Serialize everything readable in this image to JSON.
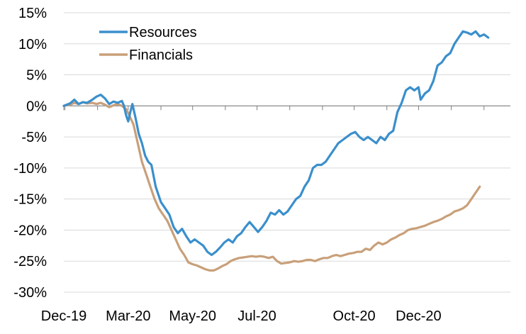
{
  "chart_data": {
    "type": "line",
    "title": "",
    "xlabel": "",
    "ylabel": "",
    "ylim": [
      -30,
      15
    ],
    "y_ticks": [
      "15%",
      "10%",
      "5%",
      "0%",
      "-5%",
      "-10%",
      "-15%",
      "-20%",
      "-25%",
      "-30%"
    ],
    "y_tick_values": [
      15,
      10,
      5,
      0,
      -5,
      -10,
      -15,
      -20,
      -25,
      -30
    ],
    "x_tick_labels": [
      "Dec-19",
      "Mar-20",
      "May-20",
      "Jul-20",
      "Oct-20",
      "Dec-20"
    ],
    "x_tick_dates": [
      "2019-12-31",
      "2020-03-01",
      "2020-05-01",
      "2020-07-01",
      "2020-10-01",
      "2020-12-01"
    ],
    "xlim": [
      "2019-12-31",
      "2021-02-26"
    ],
    "grid": "horizontal",
    "legend_position": "top-left",
    "series": [
      {
        "name": "Resources",
        "color": "#3a8fcc",
        "points": [
          [
            "2019-12-31",
            0.0
          ],
          [
            "2020-01-06",
            0.4
          ],
          [
            "2020-01-10",
            1.0
          ],
          [
            "2020-01-14",
            0.3
          ],
          [
            "2020-01-18",
            0.6
          ],
          [
            "2020-01-22",
            0.5
          ],
          [
            "2020-01-27",
            1.0
          ],
          [
            "2020-01-31",
            1.5
          ],
          [
            "2020-02-04",
            1.8
          ],
          [
            "2020-02-08",
            1.2
          ],
          [
            "2020-02-12",
            0.3
          ],
          [
            "2020-02-16",
            0.7
          ],
          [
            "2020-02-20",
            0.5
          ],
          [
            "2020-02-24",
            0.8
          ],
          [
            "2020-02-26",
            0.0
          ],
          [
            "2020-02-28",
            -1.5
          ],
          [
            "2020-03-01",
            -2.5
          ],
          [
            "2020-03-03",
            -1.0
          ],
          [
            "2020-03-05",
            0.3
          ],
          [
            "2020-03-08",
            -2.0
          ],
          [
            "2020-03-11",
            -4.5
          ],
          [
            "2020-03-14",
            -6.0
          ],
          [
            "2020-03-17",
            -8.0
          ],
          [
            "2020-03-20",
            -9.0
          ],
          [
            "2020-03-23",
            -9.5
          ],
          [
            "2020-03-27",
            -13.0
          ],
          [
            "2020-04-01",
            -15.5
          ],
          [
            "2020-04-05",
            -16.5
          ],
          [
            "2020-04-09",
            -17.5
          ],
          [
            "2020-04-13",
            -19.5
          ],
          [
            "2020-04-17",
            -20.5
          ],
          [
            "2020-04-21",
            -19.8
          ],
          [
            "2020-04-25",
            -21.0
          ],
          [
            "2020-04-29",
            -22.0
          ],
          [
            "2020-05-03",
            -21.5
          ],
          [
            "2020-05-07",
            -22.0
          ],
          [
            "2020-05-11",
            -22.5
          ],
          [
            "2020-05-15",
            -23.5
          ],
          [
            "2020-05-19",
            -24.0
          ],
          [
            "2020-05-23",
            -23.5
          ],
          [
            "2020-05-27",
            -22.8
          ],
          [
            "2020-05-31",
            -22.0
          ],
          [
            "2020-06-04",
            -21.5
          ],
          [
            "2020-06-08",
            -22.0
          ],
          [
            "2020-06-12",
            -21.0
          ],
          [
            "2020-06-16",
            -20.5
          ],
          [
            "2020-06-20",
            -19.5
          ],
          [
            "2020-06-24",
            -18.7
          ],
          [
            "2020-06-28",
            -19.5
          ],
          [
            "2020-07-02",
            -20.3
          ],
          [
            "2020-07-06",
            -19.5
          ],
          [
            "2020-07-10",
            -18.5
          ],
          [
            "2020-07-14",
            -17.2
          ],
          [
            "2020-07-18",
            -17.5
          ],
          [
            "2020-07-22",
            -16.8
          ],
          [
            "2020-07-26",
            -17.5
          ],
          [
            "2020-07-30",
            -17.0
          ],
          [
            "2020-08-03",
            -16.0
          ],
          [
            "2020-08-07",
            -15.0
          ],
          [
            "2020-08-11",
            -14.5
          ],
          [
            "2020-08-15",
            -13.0
          ],
          [
            "2020-08-19",
            -12.0
          ],
          [
            "2020-08-23",
            -10.0
          ],
          [
            "2020-08-27",
            -9.5
          ],
          [
            "2020-08-31",
            -9.5
          ],
          [
            "2020-09-04",
            -9.0
          ],
          [
            "2020-09-08",
            -8.0
          ],
          [
            "2020-09-12",
            -7.0
          ],
          [
            "2020-09-16",
            -6.0
          ],
          [
            "2020-09-20",
            -5.5
          ],
          [
            "2020-09-24",
            -5.0
          ],
          [
            "2020-09-28",
            -4.5
          ],
          [
            "2020-10-02",
            -4.2
          ],
          [
            "2020-10-06",
            -5.0
          ],
          [
            "2020-10-10",
            -5.5
          ],
          [
            "2020-10-14",
            -5.0
          ],
          [
            "2020-10-18",
            -5.5
          ],
          [
            "2020-10-22",
            -6.0
          ],
          [
            "2020-10-26",
            -5.0
          ],
          [
            "2020-10-30",
            -5.5
          ],
          [
            "2020-11-03",
            -4.5
          ],
          [
            "2020-11-07",
            -4.0
          ],
          [
            "2020-11-11",
            -1.0
          ],
          [
            "2020-11-15",
            0.5
          ],
          [
            "2020-11-19",
            2.5
          ],
          [
            "2020-11-23",
            3.0
          ],
          [
            "2020-11-27",
            2.5
          ],
          [
            "2020-12-01",
            3.0
          ],
          [
            "2020-12-03",
            1.0
          ],
          [
            "2020-12-07",
            2.0
          ],
          [
            "2020-12-11",
            2.5
          ],
          [
            "2020-12-15",
            4.0
          ],
          [
            "2020-12-19",
            6.5
          ],
          [
            "2020-12-23",
            7.0
          ],
          [
            "2020-12-27",
            8.0
          ],
          [
            "2020-12-31",
            8.5
          ],
          [
            "2021-01-04",
            10.0
          ],
          [
            "2021-01-08",
            11.0
          ],
          [
            "2021-01-12",
            12.0
          ],
          [
            "2021-01-16",
            11.8
          ],
          [
            "2021-01-20",
            11.5
          ],
          [
            "2021-01-24",
            12.0
          ],
          [
            "2021-01-28",
            11.2
          ],
          [
            "2021-02-01",
            11.5
          ],
          [
            "2021-02-05",
            11.0
          ]
        ]
      },
      {
        "name": "Financials",
        "color": "#c8a07a",
        "points": [
          [
            "2019-12-31",
            0.0
          ],
          [
            "2020-01-06",
            0.2
          ],
          [
            "2020-01-10",
            0.5
          ],
          [
            "2020-01-14",
            0.3
          ],
          [
            "2020-01-18",
            0.6
          ],
          [
            "2020-01-22",
            0.4
          ],
          [
            "2020-01-27",
            0.5
          ],
          [
            "2020-01-31",
            0.3
          ],
          [
            "2020-02-04",
            0.5
          ],
          [
            "2020-02-08",
            0.2
          ],
          [
            "2020-02-12",
            -0.2
          ],
          [
            "2020-02-16",
            0.1
          ],
          [
            "2020-02-20",
            0.3
          ],
          [
            "2020-02-24",
            0.0
          ],
          [
            "2020-02-28",
            -0.5
          ],
          [
            "2020-03-02",
            -1.5
          ],
          [
            "2020-03-06",
            -3.0
          ],
          [
            "2020-03-10",
            -6.0
          ],
          [
            "2020-03-14",
            -9.0
          ],
          [
            "2020-03-18",
            -11.0
          ],
          [
            "2020-03-22",
            -13.0
          ],
          [
            "2020-03-26",
            -15.0
          ],
          [
            "2020-03-30",
            -16.5
          ],
          [
            "2020-04-03",
            -17.5
          ],
          [
            "2020-04-07",
            -18.5
          ],
          [
            "2020-04-11",
            -20.0
          ],
          [
            "2020-04-15",
            -21.5
          ],
          [
            "2020-04-19",
            -23.0
          ],
          [
            "2020-04-23",
            -24.0
          ],
          [
            "2020-04-27",
            -25.2
          ],
          [
            "2020-05-01",
            -25.5
          ],
          [
            "2020-05-05",
            -25.7
          ],
          [
            "2020-05-09",
            -26.0
          ],
          [
            "2020-05-13",
            -26.3
          ],
          [
            "2020-05-17",
            -26.5
          ],
          [
            "2020-05-21",
            -26.5
          ],
          [
            "2020-05-25",
            -26.2
          ],
          [
            "2020-05-29",
            -25.8
          ],
          [
            "2020-06-02",
            -25.5
          ],
          [
            "2020-06-06",
            -25.0
          ],
          [
            "2020-06-10",
            -24.7
          ],
          [
            "2020-06-14",
            -24.5
          ],
          [
            "2020-06-18",
            -24.4
          ],
          [
            "2020-06-22",
            -24.3
          ],
          [
            "2020-06-26",
            -24.2
          ],
          [
            "2020-06-30",
            -24.3
          ],
          [
            "2020-07-04",
            -24.2
          ],
          [
            "2020-07-08",
            -24.3
          ],
          [
            "2020-07-12",
            -24.5
          ],
          [
            "2020-07-16",
            -24.3
          ],
          [
            "2020-07-20",
            -25.0
          ],
          [
            "2020-07-24",
            -25.4
          ],
          [
            "2020-07-28",
            -25.3
          ],
          [
            "2020-08-01",
            -25.2
          ],
          [
            "2020-08-05",
            -25.0
          ],
          [
            "2020-08-09",
            -25.1
          ],
          [
            "2020-08-13",
            -25.0
          ],
          [
            "2020-08-17",
            -24.8
          ],
          [
            "2020-08-21",
            -24.8
          ],
          [
            "2020-08-25",
            -25.0
          ],
          [
            "2020-08-29",
            -24.7
          ],
          [
            "2020-09-02",
            -24.5
          ],
          [
            "2020-09-06",
            -24.5
          ],
          [
            "2020-09-10",
            -24.2
          ],
          [
            "2020-09-14",
            -24.0
          ],
          [
            "2020-09-18",
            -24.2
          ],
          [
            "2020-09-22",
            -24.0
          ],
          [
            "2020-09-26",
            -23.8
          ],
          [
            "2020-09-30",
            -23.7
          ],
          [
            "2020-10-04",
            -23.5
          ],
          [
            "2020-10-08",
            -23.5
          ],
          [
            "2020-10-12",
            -23.0
          ],
          [
            "2020-10-16",
            -23.2
          ],
          [
            "2020-10-20",
            -22.5
          ],
          [
            "2020-10-24",
            -22.0
          ],
          [
            "2020-10-28",
            -22.3
          ],
          [
            "2020-11-01",
            -22.0
          ],
          [
            "2020-11-05",
            -21.5
          ],
          [
            "2020-11-09",
            -21.2
          ],
          [
            "2020-11-13",
            -20.8
          ],
          [
            "2020-11-17",
            -20.5
          ],
          [
            "2020-11-21",
            -20.0
          ],
          [
            "2020-11-25",
            -19.8
          ],
          [
            "2020-11-29",
            -19.7
          ],
          [
            "2020-12-03",
            -19.5
          ],
          [
            "2020-12-07",
            -19.3
          ],
          [
            "2020-12-11",
            -19.0
          ],
          [
            "2020-12-15",
            -18.7
          ],
          [
            "2020-12-19",
            -18.5
          ],
          [
            "2020-12-23",
            -18.2
          ],
          [
            "2020-12-27",
            -17.8
          ],
          [
            "2020-12-31",
            -17.5
          ],
          [
            "2021-01-04",
            -17.0
          ],
          [
            "2021-01-08",
            -16.8
          ],
          [
            "2021-01-12",
            -16.5
          ],
          [
            "2021-01-16",
            -16.0
          ],
          [
            "2021-01-20",
            -15.0
          ],
          [
            "2021-01-24",
            -14.0
          ],
          [
            "2021-01-28",
            -13.0
          ]
        ]
      }
    ]
  }
}
